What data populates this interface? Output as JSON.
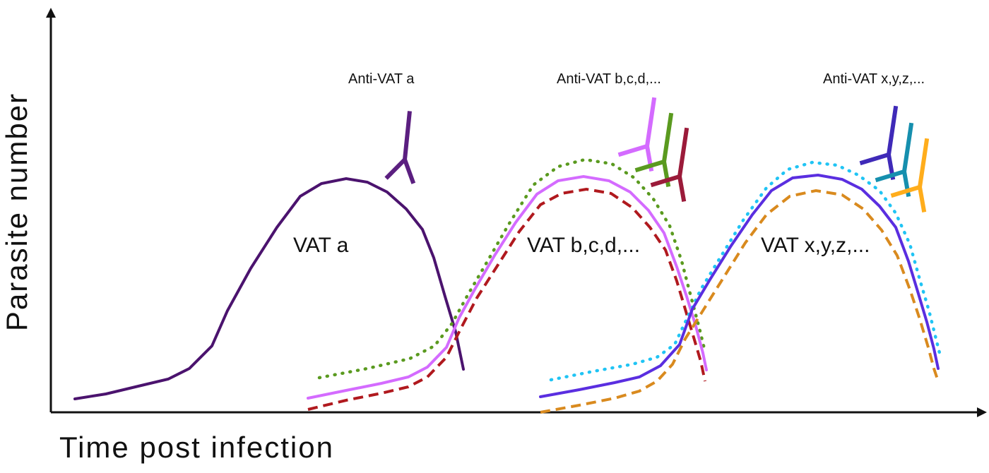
{
  "axes": {
    "y_label": "Parasite number",
    "x_label": "Time post infection"
  },
  "waves": [
    {
      "id": "a",
      "label": "VAT a",
      "antibody_label": "Anti-VAT a",
      "curves": [
        {
          "color": "#4b136e",
          "style": "solid"
        }
      ],
      "antibodies": [
        {
          "color": "#5b1f80"
        }
      ]
    },
    {
      "id": "bcd",
      "label": "VAT b,c,d,...",
      "antibody_label": "Anti-VAT b,c,d,...",
      "curves": [
        {
          "color": "#5a9a1f",
          "style": "dotted"
        },
        {
          "color": "#d46bff",
          "style": "solid"
        },
        {
          "color": "#b0191e",
          "style": "dashed"
        }
      ],
      "antibodies": [
        {
          "color": "#d46bff"
        },
        {
          "color": "#5a9a1f"
        },
        {
          "color": "#9b1b3a"
        }
      ]
    },
    {
      "id": "xyz",
      "label": "VAT x,y,z,...",
      "antibody_label": "Anti-VAT x,y,z,...",
      "curves": [
        {
          "color": "#20c4f4",
          "style": "dotted"
        },
        {
          "color": "#5a2ee0",
          "style": "solid"
        },
        {
          "color": "#d98a1e",
          "style": "dashed"
        }
      ],
      "antibodies": [
        {
          "color": "#3f2ab8"
        },
        {
          "color": "#168fae"
        },
        {
          "color": "#ffad1c"
        }
      ]
    }
  ]
}
